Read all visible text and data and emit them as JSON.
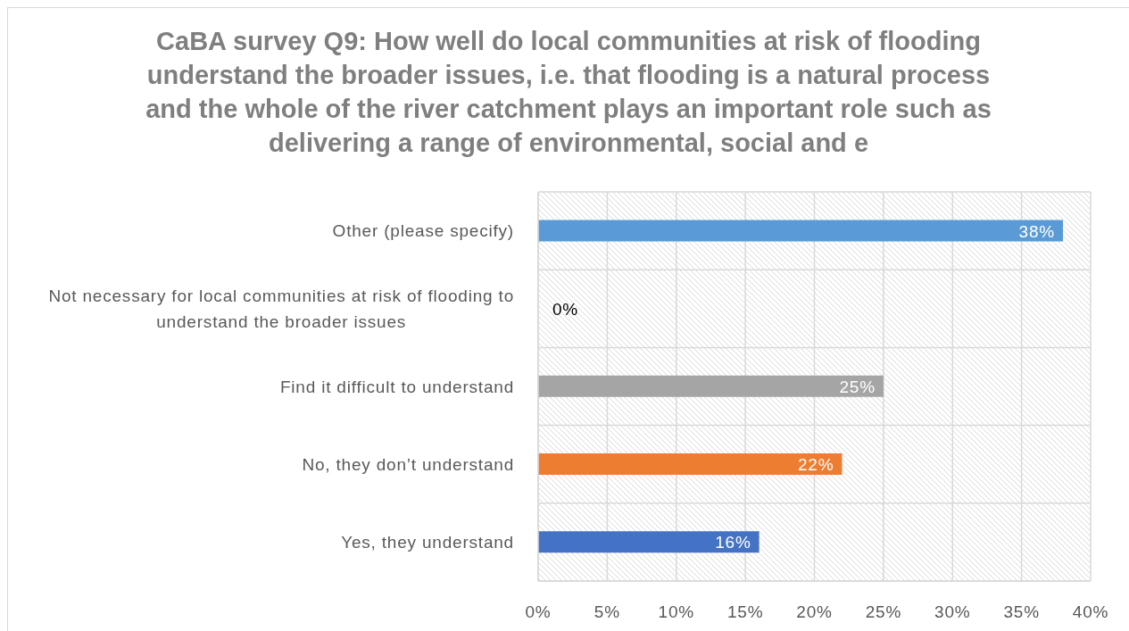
{
  "chart_data": {
    "type": "bar",
    "orientation": "horizontal",
    "title": "CaBA survey Q9: How well do local communities at risk of flooding understand the broader issues, i.e. that flooding is a natural process and the whole of the river catchment plays an important role such as delivering a range of environmental, social and e",
    "categories": [
      "Other (please specify)",
      "Not necessary for local communities at risk of flooding to understand the broader issues",
      "Find it difficult to understand",
      "No, they don’t understand",
      "Yes, they understand"
    ],
    "values": [
      38,
      0,
      25,
      22,
      16
    ],
    "colors": [
      "#5b9bd5",
      "#ffc000",
      "#a5a5a5",
      "#ed7d31",
      "#4472c4"
    ],
    "value_labels": [
      "38%",
      "0%",
      "25%",
      "22%",
      "16%"
    ],
    "xlim": [
      0,
      40
    ],
    "xticks": [
      {
        "value": 0,
        "label": "0%"
      },
      {
        "value": 5,
        "label": "5%"
      },
      {
        "value": 10,
        "label": "10%"
      },
      {
        "value": 15,
        "label": "15%"
      },
      {
        "value": 20,
        "label": "20%"
      },
      {
        "value": 25,
        "label": "25%"
      },
      {
        "value": 30,
        "label": "30%"
      },
      {
        "value": 35,
        "label": "35%"
      },
      {
        "value": 40,
        "label": "40%"
      }
    ],
    "grid": true
  }
}
